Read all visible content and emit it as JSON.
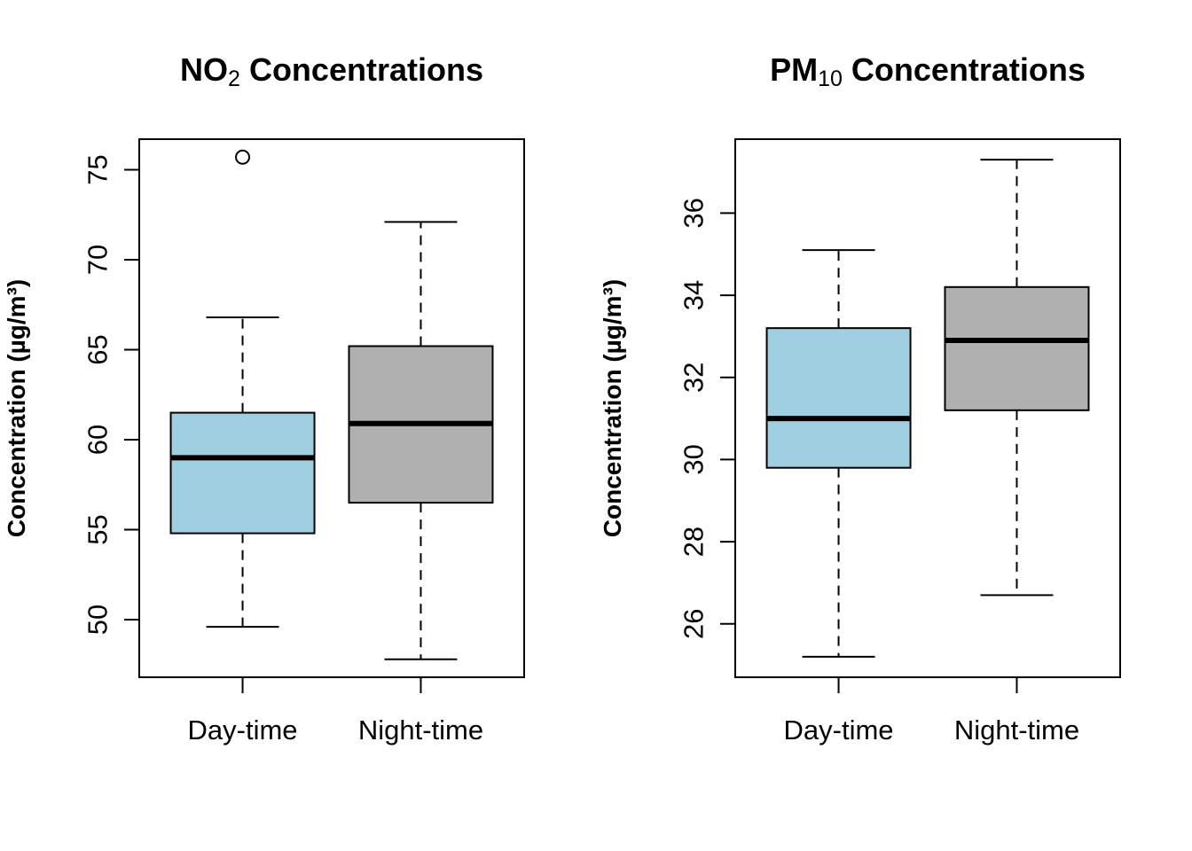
{
  "chart_data": [
    {
      "type": "boxplot",
      "title": {
        "main": "NO",
        "subscript": "2",
        "rest": " Concentrations"
      },
      "ylabel": "Concentration (µg/m³)",
      "categories": [
        "Day-time",
        "Night-time"
      ],
      "ylim": [
        46.8,
        76.7
      ],
      "yticks": [
        50,
        55,
        60,
        65,
        70,
        75
      ],
      "boxes": [
        {
          "name": "Day-time",
          "color": "#9fcfe0",
          "whisker_low": 49.6,
          "q1": 54.8,
          "median": 59.0,
          "q3": 61.5,
          "whisker_high": 66.8,
          "outliers": [
            75.7
          ]
        },
        {
          "name": "Night-time",
          "color": "#b0b0b0",
          "whisker_low": 47.8,
          "q1": 56.5,
          "median": 60.9,
          "q3": 65.2,
          "whisker_high": 72.1,
          "outliers": []
        }
      ]
    },
    {
      "type": "boxplot",
      "title": {
        "main": "PM",
        "subscript": "10",
        "rest": " Concentrations"
      },
      "ylabel": "Concentration (µg/m³)",
      "categories": [
        "Day-time",
        "Night-time"
      ],
      "ylim": [
        24.7,
        37.8
      ],
      "yticks": [
        26,
        28,
        30,
        32,
        34,
        36
      ],
      "boxes": [
        {
          "name": "Day-time",
          "color": "#9fcfe0",
          "whisker_low": 25.2,
          "q1": 29.8,
          "median": 31.0,
          "q3": 33.2,
          "whisker_high": 35.1,
          "outliers": []
        },
        {
          "name": "Night-time",
          "color": "#b0b0b0",
          "whisker_low": 26.7,
          "q1": 31.2,
          "median": 32.9,
          "q3": 34.2,
          "whisker_high": 37.3,
          "outliers": []
        }
      ]
    }
  ]
}
